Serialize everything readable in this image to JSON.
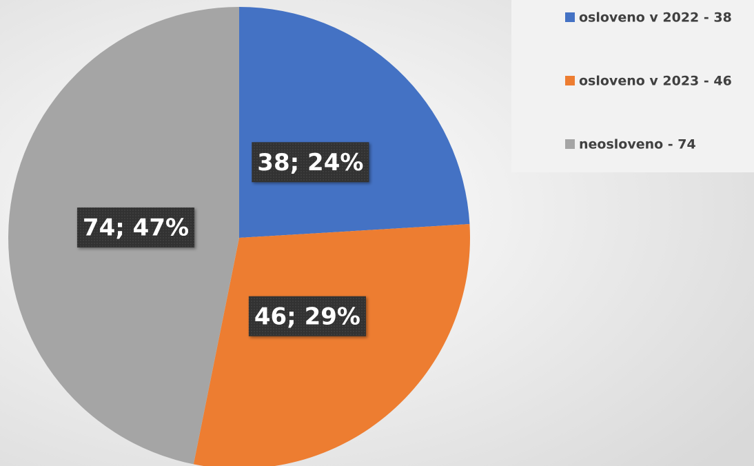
{
  "chart_data": {
    "type": "pie",
    "categories": [
      "osloveno v 2022 - 38",
      "osloveno v 2023 - 46",
      "neosloveno - 74"
    ],
    "values": [
      38,
      46,
      74
    ],
    "value_labels": [
      "38; 24%",
      "46; 29%",
      "74; 47%"
    ],
    "colors": [
      "#4472c4",
      "#ed7d31",
      "#a5a5a5"
    ],
    "legend": "top-right"
  }
}
